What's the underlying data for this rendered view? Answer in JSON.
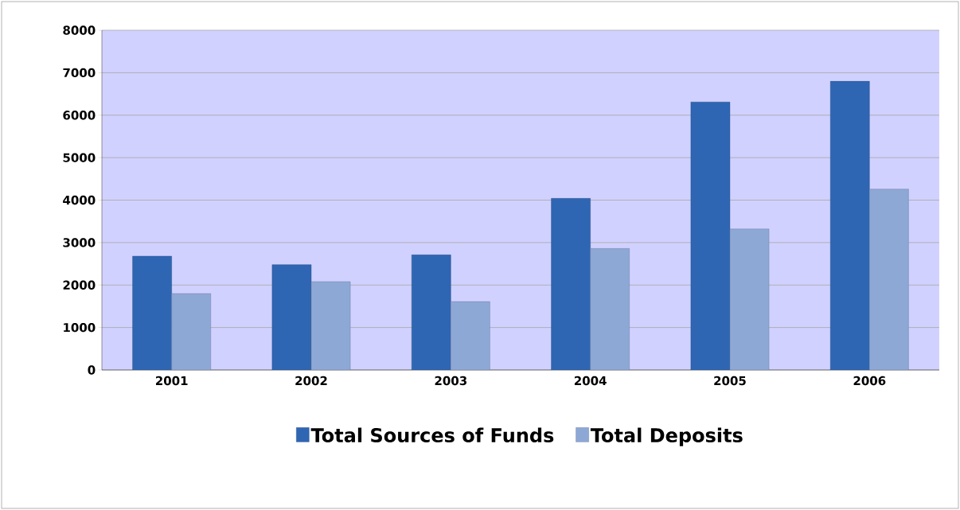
{
  "chart_data": {
    "type": "bar",
    "categories": [
      "2001",
      "2002",
      "2003",
      "2004",
      "2005",
      "2006"
    ],
    "series": [
      {
        "name": "Total Sources of Funds",
        "color": "#2f66b3",
        "values": [
          2680,
          2480,
          2710,
          4040,
          6310,
          6800
        ]
      },
      {
        "name": "Total Deposits",
        "color": "#8ea8d6",
        "values": [
          1800,
          2080,
          1610,
          2860,
          3320,
          4260
        ]
      }
    ],
    "ylim": [
      0,
      8000
    ],
    "yticks": [
      0,
      1000,
      2000,
      3000,
      4000,
      5000,
      6000,
      7000,
      8000
    ],
    "grid": "y",
    "legend": "bottom"
  }
}
